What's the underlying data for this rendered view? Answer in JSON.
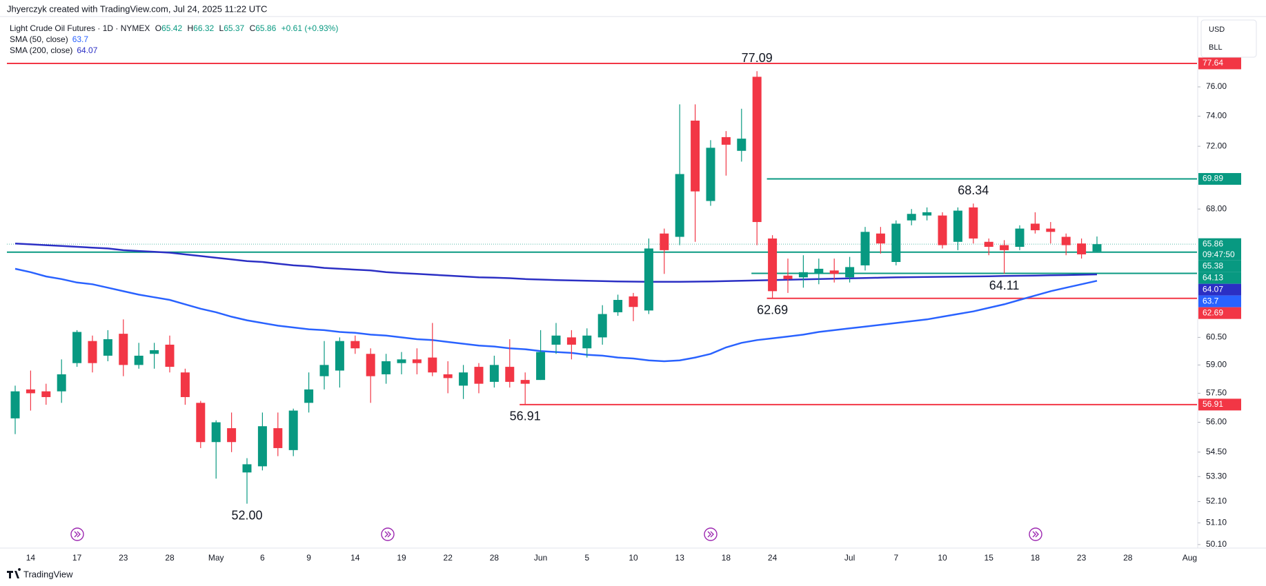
{
  "header": {
    "credit": "Jhyerczyk created with TradingView.com, Jul 24, 2025 11:22 UTC",
    "currency": "USD",
    "unit": "BLL",
    "footer": "TradingView"
  },
  "chart_data": {
    "type": "candlestick",
    "symbol": "Light Crude Oil Futures · 1D · NYMEX",
    "ohlc_labels": [
      "O",
      "H",
      "L",
      "C"
    ],
    "change": "+0.61 (+0.93%)",
    "countdown": "09:47:50",
    "up_color": "#089981",
    "down_color": "#f23645",
    "log_scale": true,
    "ylim": [
      49.94,
      80.72
    ],
    "yticks": [
      {
        "value": 76,
        "label": "76.00"
      },
      {
        "value": 74,
        "label": "74.00"
      },
      {
        "value": 72,
        "label": "72.00"
      },
      {
        "value": 68,
        "label": "68.00"
      },
      {
        "value": 60.5,
        "label": "60.50"
      },
      {
        "value": 59,
        "label": "59.00"
      },
      {
        "value": 57.5,
        "label": "57.50"
      },
      {
        "value": 56,
        "label": "56.00"
      },
      {
        "value": 54.5,
        "label": "54.50"
      },
      {
        "value": 53.3,
        "label": "53.30"
      },
      {
        "value": 52.1,
        "label": "52.10"
      },
      {
        "value": 51.1,
        "label": "51.10"
      },
      {
        "value": 50.1,
        "label": "50.10"
      }
    ],
    "categories": [
      null,
      "14",
      null,
      null,
      "17",
      null,
      null,
      "23",
      null,
      null,
      "28",
      null,
      null,
      "May",
      null,
      null,
      "6",
      null,
      null,
      "9",
      null,
      null,
      "14",
      null,
      null,
      "19",
      null,
      null,
      "22",
      null,
      null,
      "28",
      null,
      null,
      "Jun",
      null,
      null,
      "5",
      null,
      null,
      "10",
      null,
      null,
      "13",
      null,
      null,
      "18",
      null,
      null,
      "24",
      null,
      null,
      null,
      null,
      "Jul",
      null,
      null,
      "7",
      null,
      null,
      "10",
      null,
      null,
      "15",
      null,
      null,
      "18",
      null,
      null,
      "23",
      null,
      null,
      "28",
      null,
      null,
      null,
      "Aug"
    ],
    "open": [
      56.2,
      57.7,
      57.6,
      57.6,
      59.1,
      60.3,
      59.5,
      60.7,
      59.0,
      59.6,
      60.1,
      58.6,
      57.0,
      55.0,
      55.7,
      53.5,
      53.8,
      55.7,
      54.6,
      57.0,
      58.4,
      58.7,
      60.3,
      59.6,
      58.5,
      59.1,
      59.3,
      59.4,
      58.5,
      57.9,
      58.9,
      58.1,
      58.9,
      58.2,
      58.2,
      60.1,
      60.5,
      59.9,
      60.5,
      61.9,
      62.8,
      62.0,
      66.5,
      66.3,
      73.7,
      68.5,
      72.6,
      71.7,
      76.7,
      66.2,
      64.0,
      63.9,
      64.1,
      64.3,
      63.9,
      64.6,
      66.5,
      64.8,
      67.3,
      67.6,
      67.6,
      66.0,
      68.1,
      66.0,
      65.8,
      65.7,
      67.1,
      66.8,
      66.3,
      65.9,
      65.42,
      null,
      null,
      null,
      null,
      null,
      null
    ],
    "high": [
      57.9,
      58.7,
      58.0,
      59.3,
      60.9,
      60.6,
      60.9,
      61.5,
      60.2,
      60.2,
      60.6,
      58.8,
      57.1,
      56.1,
      56.5,
      54.2,
      56.5,
      56.5,
      56.7,
      58.6,
      60.3,
      60.5,
      60.6,
      59.9,
      59.6,
      59.7,
      59.9,
      61.3,
      59.2,
      59.0,
      59.1,
      59.5,
      60.4,
      58.6,
      60.9,
      61.3,
      60.9,
      61.0,
      62.3,
      62.9,
      63.0,
      66.2,
      66.8,
      74.8,
      74.8,
      72.4,
      73.0,
      74.5,
      77.09,
      66.4,
      65.0,
      65.2,
      65.0,
      65.0,
      65.1,
      66.9,
      66.9,
      67.3,
      68.0,
      68.1,
      67.8,
      68.1,
      68.34,
      66.2,
      66.1,
      67.0,
      67.8,
      67.2,
      66.5,
      66.2,
      66.32,
      null,
      null,
      null,
      null,
      null,
      null
    ],
    "low": [
      55.4,
      56.6,
      56.9,
      57.0,
      58.9,
      58.6,
      59.2,
      58.4,
      58.8,
      58.8,
      58.6,
      56.9,
      54.7,
      53.2,
      54.5,
      52.0,
      53.6,
      54.3,
      54.3,
      56.5,
      57.7,
      57.8,
      59.6,
      57.0,
      58.0,
      58.5,
      58.5,
      58.4,
      57.5,
      57.2,
      57.5,
      57.8,
      57.8,
      56.91,
      58.2,
      59.6,
      59.3,
      59.4,
      60.1,
      61.7,
      61.4,
      61.8,
      64.1,
      65.8,
      66.0,
      68.2,
      70.1,
      71.0,
      65.8,
      62.69,
      63.0,
      63.3,
      63.5,
      63.6,
      63.6,
      64.3,
      65.3,
      64.6,
      67.0,
      67.3,
      65.6,
      65.5,
      65.9,
      65.2,
      64.11,
      65.5,
      66.5,
      65.9,
      65.2,
      65.0,
      65.37,
      null,
      null,
      null,
      null,
      null,
      null
    ],
    "close": [
      57.6,
      57.5,
      57.3,
      58.5,
      60.8,
      59.1,
      60.4,
      59.0,
      59.5,
      59.8,
      58.9,
      57.3,
      55.0,
      56.0,
      55.0,
      53.9,
      55.8,
      54.7,
      56.6,
      57.7,
      59.0,
      60.3,
      59.9,
      58.4,
      59.2,
      59.3,
      59.1,
      58.6,
      58.3,
      58.6,
      58.0,
      59.0,
      58.1,
      58.0,
      59.7,
      60.6,
      60.1,
      60.6,
      61.8,
      62.6,
      62.2,
      65.6,
      65.5,
      70.2,
      69.1,
      71.9,
      72.1,
      72.5,
      67.2,
      63.1,
      63.8,
      64.2,
      64.4,
      64.1,
      64.5,
      66.6,
      65.9,
      67.1,
      67.7,
      67.8,
      65.8,
      67.9,
      66.2,
      65.7,
      65.5,
      66.8,
      66.7,
      66.6,
      65.8,
      65.25,
      65.86,
      null,
      null,
      null,
      null,
      null,
      null
    ],
    "series": [
      {
        "name": "SMA (50, close)",
        "color": "#2962ff",
        "values": [
          64.4,
          64.2,
          63.95,
          63.8,
          63.6,
          63.5,
          63.3,
          63.1,
          62.9,
          62.75,
          62.6,
          62.35,
          62.1,
          61.9,
          61.65,
          61.45,
          61.3,
          61.15,
          61.05,
          60.95,
          60.9,
          60.8,
          60.75,
          60.65,
          60.6,
          60.5,
          60.4,
          60.35,
          60.25,
          60.15,
          60.05,
          60.0,
          59.9,
          59.85,
          59.75,
          59.7,
          59.65,
          59.55,
          59.5,
          59.4,
          59.35,
          59.25,
          59.2,
          59.25,
          59.4,
          59.6,
          59.95,
          60.2,
          60.35,
          60.45,
          60.55,
          60.65,
          60.8,
          60.9,
          61.0,
          61.1,
          61.2,
          61.3,
          61.4,
          61.5,
          61.65,
          61.8,
          61.95,
          62.15,
          62.35,
          62.6,
          62.85,
          63.1,
          63.3,
          63.5,
          63.7,
          null,
          null,
          null,
          null,
          null,
          null
        ]
      },
      {
        "name": "SMA (200, close)",
        "color": "#2b2fc4",
        "values": [
          65.9,
          65.85,
          65.8,
          65.75,
          65.7,
          65.65,
          65.6,
          65.5,
          65.45,
          65.4,
          65.35,
          65.25,
          65.15,
          65.05,
          64.95,
          64.85,
          64.8,
          64.7,
          64.6,
          64.55,
          64.45,
          64.4,
          64.35,
          64.3,
          64.2,
          64.15,
          64.1,
          64.05,
          64.0,
          63.95,
          63.9,
          63.88,
          63.85,
          63.8,
          63.77,
          63.74,
          63.72,
          63.7,
          63.68,
          63.66,
          63.65,
          63.64,
          63.64,
          63.64,
          63.65,
          63.66,
          63.68,
          63.7,
          63.72,
          63.74,
          63.76,
          63.78,
          63.8,
          63.82,
          63.84,
          63.86,
          63.88,
          63.9,
          63.91,
          63.92,
          63.93,
          63.94,
          63.95,
          63.96,
          63.98,
          63.99,
          64.0,
          64.02,
          64.03,
          64.05,
          64.07,
          null,
          null,
          null,
          null,
          null,
          null
        ]
      }
    ],
    "levels": [
      {
        "value": 77.64,
        "color": "#f23645"
      },
      {
        "value": 69.89,
        "color": "#089981"
      },
      {
        "value": 65.38,
        "color": "#089981"
      },
      {
        "value": 64.13,
        "color": "#089981"
      },
      {
        "value": 62.69,
        "color": "#f23645"
      },
      {
        "value": 56.91,
        "color": "#f23645"
      }
    ],
    "annotations": [
      77.09,
      68.34,
      64.11,
      62.69,
      56.91,
      {
        "value": 52,
        "label": "52.00"
      }
    ]
  }
}
